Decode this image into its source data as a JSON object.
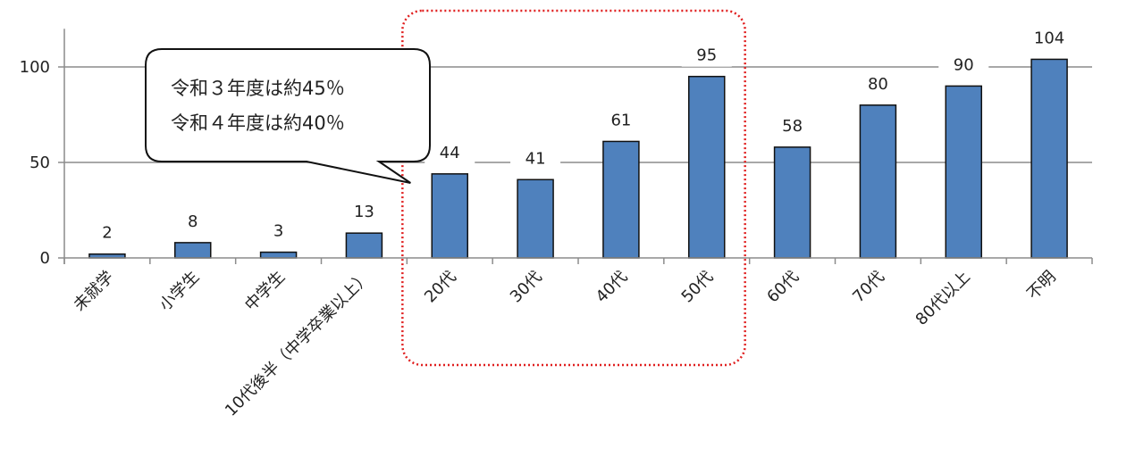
{
  "chart_data": {
    "type": "bar",
    "categories": [
      "未就学",
      "小学生",
      "中学生",
      "10代後半（中学卒業以上）",
      "20代",
      "30代",
      "40代",
      "50代",
      "60代",
      "70代",
      "80代以上",
      "不明"
    ],
    "values": [
      2,
      8,
      3,
      13,
      44,
      41,
      61,
      95,
      58,
      80,
      90,
      104
    ],
    "ylim": [
      0,
      120
    ],
    "yticks": [
      0,
      50,
      100
    ],
    "grid": true,
    "legend": "none",
    "bar_color": "#4f81bd",
    "bar_edge_color": "#111111",
    "highlight": {
      "categories": [
        "20代",
        "30代",
        "40代",
        "50代"
      ],
      "style": "red dotted rounded box",
      "color": "#e02020"
    },
    "annotations": [
      {
        "type": "callout",
        "lines": [
          "令和３年度は約45％",
          "令和４年度は約40％"
        ],
        "points_to": "20代"
      }
    ]
  }
}
